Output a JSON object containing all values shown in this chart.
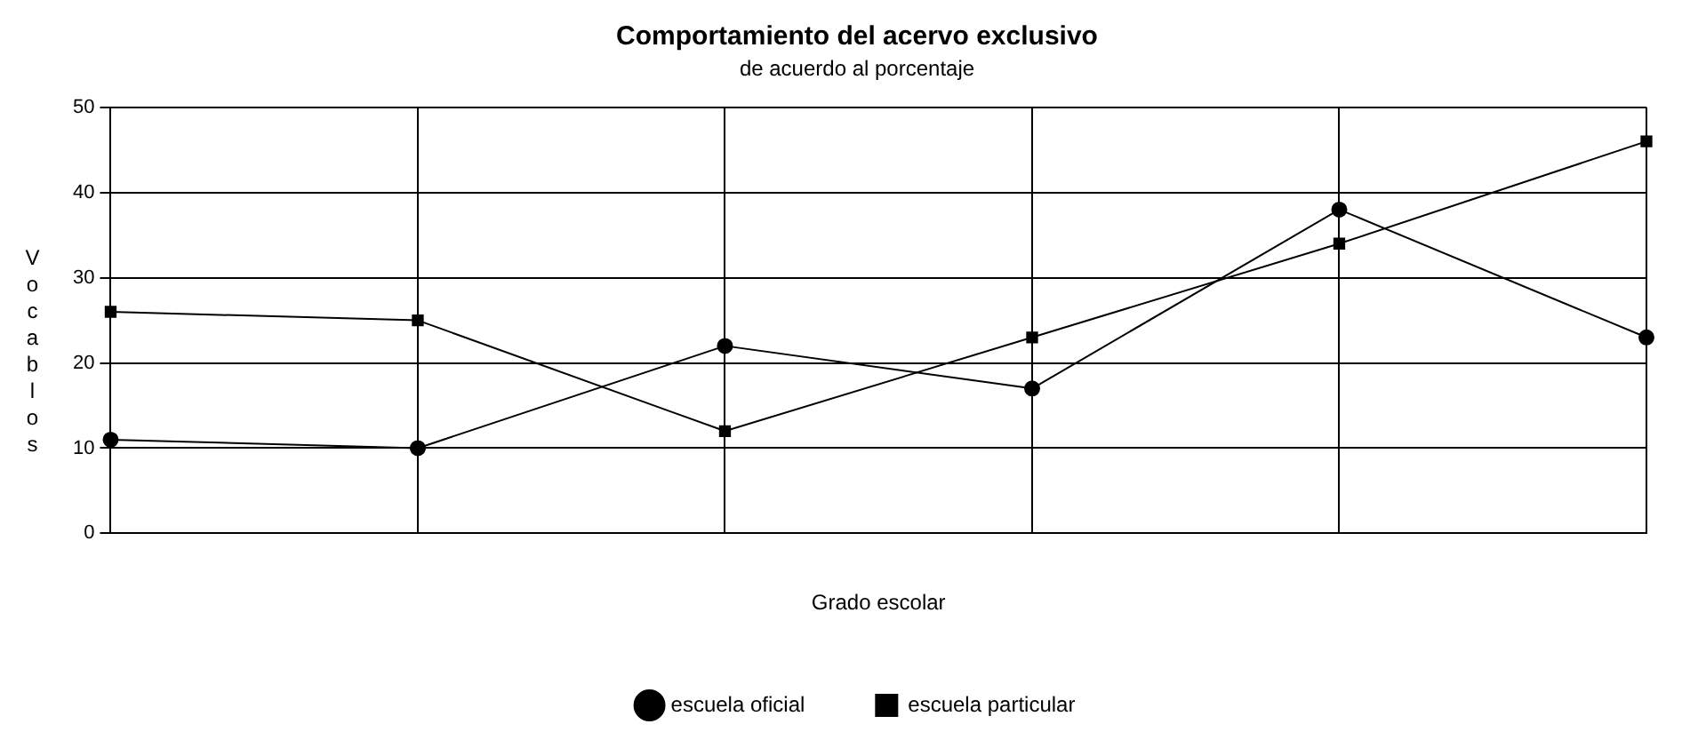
{
  "chart_data": {
    "type": "line",
    "title": "Comportamiento del acervo exclusivo",
    "subtitle": "de acuerdo al porcentaje",
    "xlabel": "Grado escolar",
    "ylabel": "Vocablos",
    "categories": [
      null,
      null,
      null,
      null,
      null,
      null
    ],
    "series": [
      {
        "name": "escuela oficial",
        "color": "#000000",
        "marker": "circle",
        "values": [
          11,
          10,
          22,
          17,
          38,
          23
        ]
      },
      {
        "name": "escuela particular",
        "color": "#000000",
        "marker": "square",
        "values": [
          26,
          25,
          12,
          23,
          34,
          46
        ]
      }
    ],
    "ylim": [
      0,
      50
    ],
    "yticks": [
      0,
      10,
      20,
      30,
      40,
      50
    ],
    "grid": true,
    "legend": "bottom",
    "line_style": "solid"
  }
}
